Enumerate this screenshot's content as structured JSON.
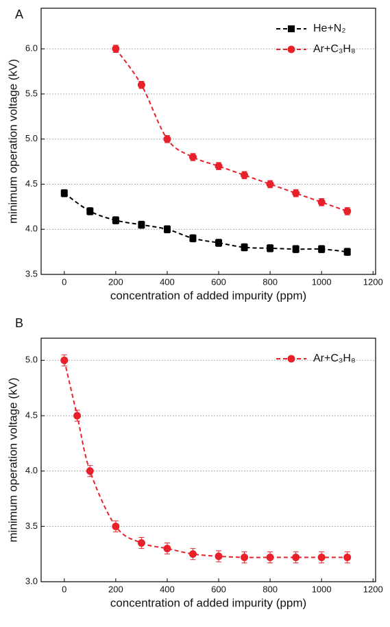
{
  "chart_data": [
    {
      "type": "line",
      "panel_label": "A",
      "xlabel": "concentration of added impurity (ppm)",
      "ylabel": "minimum operation voltage (kV)",
      "xlim": [
        -90,
        1210
      ],
      "ylim": [
        3.5,
        6.45
      ],
      "xticks": [
        0,
        200,
        400,
        600,
        800,
        1000,
        1200
      ],
      "yticks": [
        3.5,
        {
          "value": 4,
          "label": "4.0"
        },
        4.5,
        {
          "value": 5,
          "label": "5.0"
        },
        5.5,
        {
          "value": 6,
          "label": "6.0"
        }
      ],
      "grid": true,
      "legend": "upper right",
      "series": [
        {
          "name": "He+N₂",
          "color": "#000000",
          "marker": "square",
          "x": [
            0,
            100,
            200,
            300,
            400,
            500,
            600,
            700,
            800,
            900,
            1000,
            1100
          ],
          "values": [
            4.4,
            4.2,
            4.1,
            4.05,
            4.0,
            3.9,
            3.85,
            3.8,
            3.79,
            3.78,
            3.78,
            3.75
          ],
          "errors": [
            0.04,
            0.04,
            0.04,
            0.04,
            0.04,
            0.04,
            0.04,
            0.04,
            0.04,
            0.04,
            0.04,
            0.04
          ]
        },
        {
          "name": "Ar+C₃H₈",
          "color": "#e8202a",
          "marker": "circle",
          "x": [
            200,
            300,
            400,
            500,
            600,
            700,
            800,
            900,
            1000,
            1100
          ],
          "values": [
            6.0,
            5.6,
            5.0,
            4.8,
            4.7,
            4.6,
            4.5,
            4.4,
            4.3,
            4.2
          ],
          "errors": [
            0.04,
            0.04,
            0.04,
            0.04,
            0.04,
            0.04,
            0.04,
            0.04,
            0.04,
            0.04
          ]
        }
      ]
    },
    {
      "type": "line",
      "panel_label": "B",
      "xlabel": "concentration of added impurity (ppm)",
      "ylabel": "minimum operation voltage (kV)",
      "xlim": [
        -90,
        1210
      ],
      "ylim": [
        3.0,
        5.2
      ],
      "xticks": [
        0,
        200,
        400,
        600,
        800,
        1000,
        1200
      ],
      "yticks": [
        {
          "value": 3,
          "label": "3.0"
        },
        3.5,
        {
          "value": 4,
          "label": "4.0"
        },
        4.5,
        {
          "value": 5,
          "label": "5.0"
        }
      ],
      "grid": true,
      "legend": "upper right",
      "series": [
        {
          "name": "Ar+C₃H₈",
          "color": "#e8202a",
          "marker": "circle",
          "x": [
            0,
            50,
            100,
            200,
            300,
            400,
            500,
            600,
            700,
            800,
            900,
            1000,
            1100
          ],
          "values": [
            5.0,
            4.5,
            4.0,
            3.5,
            3.35,
            3.3,
            3.25,
            3.23,
            3.22,
            3.22,
            3.22,
            3.22,
            3.22
          ],
          "errors": [
            0.05,
            0.05,
            0.05,
            0.05,
            0.05,
            0.05,
            0.05,
            0.05,
            0.05,
            0.05,
            0.05,
            0.05,
            0.05
          ]
        }
      ]
    }
  ]
}
